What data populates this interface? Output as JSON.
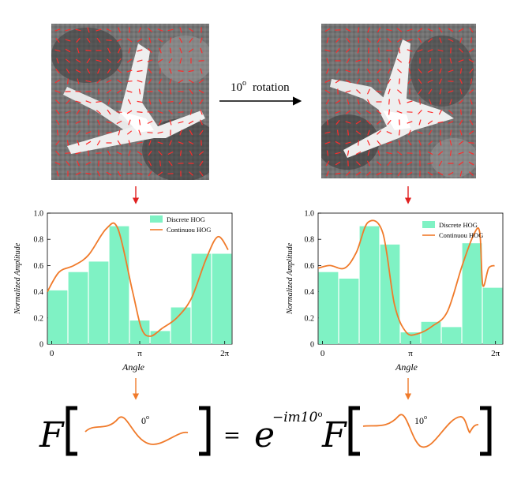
{
  "figure": {
    "rotation_label": {
      "base": "10",
      "sup": "o",
      "word": "rotation"
    },
    "colors": {
      "bar": "#7ff2c4",
      "line": "#f07a2a",
      "arrow_red": "#e02020",
      "arrow_orange": "#f07a2a"
    }
  },
  "chart_data": [
    {
      "type": "bar",
      "xlabel": "Angle",
      "ylabel": "Normalized Amplitude",
      "ylim": [
        0,
        1.0
      ],
      "yticks": [
        "0",
        "0.2",
        "0.4",
        "0.6",
        "0.8",
        "1.0"
      ],
      "xticks": [
        "0",
        "π",
        "2π"
      ],
      "legend_placement": "top-right",
      "series": [
        {
          "name": "Discrete HOG",
          "kind": "bar",
          "values": [
            0.41,
            0.55,
            0.63,
            0.9,
            0.18,
            0.1,
            0.28,
            0.69,
            0.69
          ]
        },
        {
          "name": "Continuou HOG",
          "kind": "line",
          "x": [
            0,
            0.4,
            0.9,
            1.4,
            2.0,
            2.4,
            2.9,
            3.2,
            3.5,
            3.9,
            4.4,
            4.9,
            5.4,
            5.8,
            6.15
          ],
          "y": [
            0.4,
            0.55,
            0.6,
            0.68,
            0.88,
            0.88,
            0.4,
            0.12,
            0.06,
            0.12,
            0.2,
            0.35,
            0.65,
            0.82,
            0.72
          ]
        }
      ]
    },
    {
      "type": "bar",
      "xlabel": "Angle",
      "ylabel": "Normalized Amplitude",
      "ylim": [
        0,
        1.0
      ],
      "yticks": [
        "0",
        "0.2",
        "0.4",
        "0.6",
        "0.8",
        "1.0"
      ],
      "xticks": [
        "0",
        "π",
        "2π"
      ],
      "legend_placement": "top-right",
      "series": [
        {
          "name": "Discrete HOG",
          "kind": "bar",
          "values": [
            0.55,
            0.5,
            0.9,
            0.76,
            0.09,
            0.17,
            0.13,
            0.77,
            0.43
          ]
        },
        {
          "name": "Continuou HOG",
          "kind": "line",
          "x": [
            0,
            0.4,
            0.9,
            1.3,
            1.7,
            2.2,
            2.6,
            3.0,
            3.4,
            3.9,
            4.4,
            4.9,
            5.3,
            5.5,
            5.6,
            5.8,
            6.0
          ],
          "y": [
            0.58,
            0.6,
            0.58,
            0.7,
            0.93,
            0.85,
            0.3,
            0.09,
            0.08,
            0.14,
            0.25,
            0.6,
            0.84,
            0.85,
            0.45,
            0.58,
            0.6
          ]
        }
      ]
    }
  ],
  "equation": {
    "F": "F",
    "equals": "=",
    "e": "e",
    "exponent": "−im10",
    "exponent_sup": "o",
    "left_angle": "0",
    "right_angle": "10",
    "angle_sup": "o"
  }
}
